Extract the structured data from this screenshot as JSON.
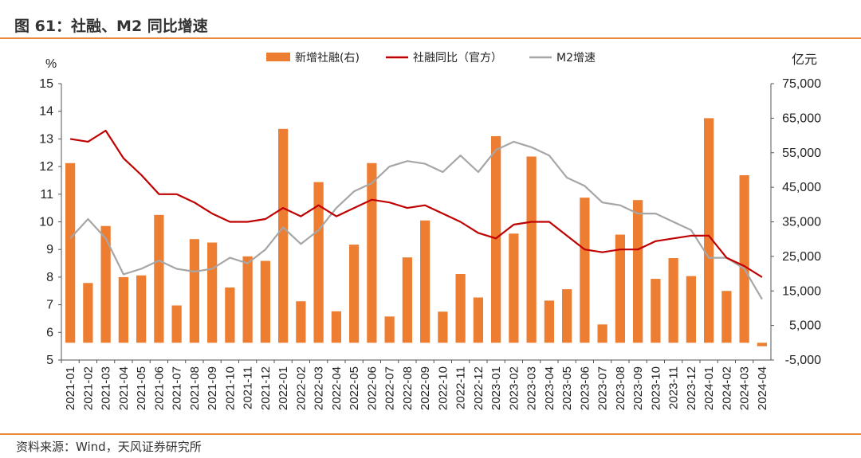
{
  "header": {
    "title": "图 61：社融、M2 同比增速"
  },
  "footer": {
    "source": "资料来源：Wind，天风证券研究所"
  },
  "colors": {
    "bar": "#ED7D31",
    "line_official": "#C00000",
    "line_m2": "#A6A6A6",
    "accent": "#E8883A"
  },
  "chart_data": {
    "type": "bar",
    "title": "",
    "y_left_label": "%",
    "y_right_label": "亿元",
    "y_left_lim": [
      5,
      15
    ],
    "y_left_ticks": [
      "5",
      "6",
      "7",
      "8",
      "9",
      "10",
      "11",
      "12",
      "13",
      "14",
      "15"
    ],
    "y_right_lim": [
      -5000,
      75000
    ],
    "y_right_ticks": [
      "-5,000",
      "5,000",
      "15,000",
      "25,000",
      "35,000",
      "45,000",
      "55,000",
      "65,000",
      "75,000"
    ],
    "legend": [
      "新增社融(右)",
      "社融同比（官方）",
      "M2增速"
    ],
    "categories": [
      "2021-01",
      "2021-02",
      "2021-03",
      "2021-04",
      "2021-05",
      "2021-06",
      "2021-07",
      "2021-08",
      "2021-09",
      "2021-10",
      "2021-11",
      "2021-12",
      "2022-01",
      "2022-02",
      "2022-03",
      "2022-04",
      "2022-05",
      "2022-06",
      "2022-07",
      "2022-08",
      "2022-09",
      "2022-10",
      "2022-11",
      "2022-12",
      "2023-01",
      "2023-02",
      "2023-03",
      "2023-04",
      "2023-05",
      "2023-06",
      "2023-07",
      "2023-08",
      "2023-09",
      "2023-10",
      "2023-11",
      "2023-12",
      "2024-01",
      "2024-02",
      "2024-03",
      "2024-04"
    ],
    "series": [
      {
        "name": "新增社融(右)",
        "type": "bar",
        "axis": "right",
        "values": [
          52000,
          17300,
          33800,
          19000,
          19500,
          37000,
          10800,
          30000,
          29000,
          16000,
          25000,
          23700,
          61900,
          12000,
          46500,
          9100,
          28400,
          52000,
          7600,
          24700,
          35400,
          9000,
          19900,
          13100,
          59800,
          31600,
          53900,
          12200,
          15500,
          42000,
          5300,
          31300,
          41300,
          18500,
          24500,
          19300,
          65000,
          15000,
          48500,
          -1000
        ]
      },
      {
        "name": "社融同比（官方）",
        "type": "line",
        "axis": "left",
        "values": [
          13.0,
          12.9,
          13.3,
          12.3,
          11.7,
          11.0,
          11.0,
          10.7,
          10.3,
          10.0,
          10.0,
          10.1,
          10.5,
          10.2,
          10.6,
          10.2,
          10.5,
          10.8,
          10.7,
          10.5,
          10.6,
          10.3,
          10.0,
          9.6,
          9.4,
          9.9,
          10.0,
          10.0,
          9.5,
          9.0,
          8.9,
          9.0,
          9.0,
          9.3,
          9.4,
          9.5,
          9.5,
          8.7,
          8.4,
          8.0
        ]
      },
      {
        "name": "M2增速",
        "type": "line",
        "axis": "left",
        "values": [
          9.4,
          10.1,
          9.4,
          8.1,
          8.3,
          8.6,
          8.3,
          8.2,
          8.3,
          8.7,
          8.5,
          9.0,
          9.8,
          9.2,
          9.7,
          10.5,
          11.1,
          11.4,
          12.0,
          12.2,
          12.1,
          11.8,
          12.4,
          11.8,
          12.6,
          12.9,
          12.7,
          12.4,
          11.6,
          11.3,
          10.7,
          10.6,
          10.3,
          10.3,
          10.0,
          9.7,
          8.7,
          8.7,
          8.3,
          7.2
        ]
      }
    ]
  }
}
